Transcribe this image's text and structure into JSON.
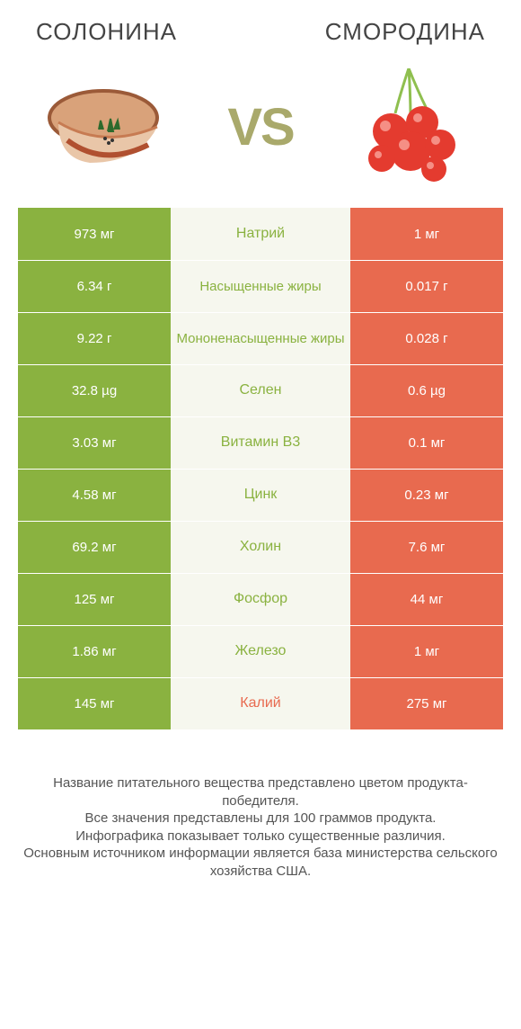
{
  "colors": {
    "green": "#8ab240",
    "red": "#e86a4f",
    "mid_bg": "#f6f7ee",
    "vs": "#a9a96b",
    "text": "#444444"
  },
  "left_product": "СОЛОНИНА",
  "right_product": "СМОРОДИНА",
  "vs_label": "VS",
  "rows": [
    {
      "left": "973 мг",
      "name": "Натрий",
      "right": "1 мг",
      "winner": "left"
    },
    {
      "left": "6.34 г",
      "name": "Насыщенные жиры",
      "right": "0.017 г",
      "winner": "left"
    },
    {
      "left": "9.22 г",
      "name": "Мононенасыщенные жиры",
      "right": "0.028 г",
      "winner": "left"
    },
    {
      "left": "32.8 µg",
      "name": "Селен",
      "right": "0.6 µg",
      "winner": "left"
    },
    {
      "left": "3.03 мг",
      "name": "Витамин B3",
      "right": "0.1 мг",
      "winner": "left"
    },
    {
      "left": "4.58 мг",
      "name": "Цинк",
      "right": "0.23 мг",
      "winner": "left"
    },
    {
      "left": "69.2 мг",
      "name": "Холин",
      "right": "7.6 мг",
      "winner": "left"
    },
    {
      "left": "125 мг",
      "name": "Фосфор",
      "right": "44 мг",
      "winner": "left"
    },
    {
      "left": "1.86 мг",
      "name": "Железо",
      "right": "1 мг",
      "winner": "left"
    },
    {
      "left": "145 мг",
      "name": "Калий",
      "right": "275 мг",
      "winner": "right"
    }
  ],
  "footer_lines": [
    "Название питательного вещества представлено цветом продукта-победителя.",
    "Все значения представлены для 100 граммов продукта.",
    "Инфографика показывает только существенные различия.",
    "Основным источником информации является база министерства сельского хозяйства США."
  ]
}
